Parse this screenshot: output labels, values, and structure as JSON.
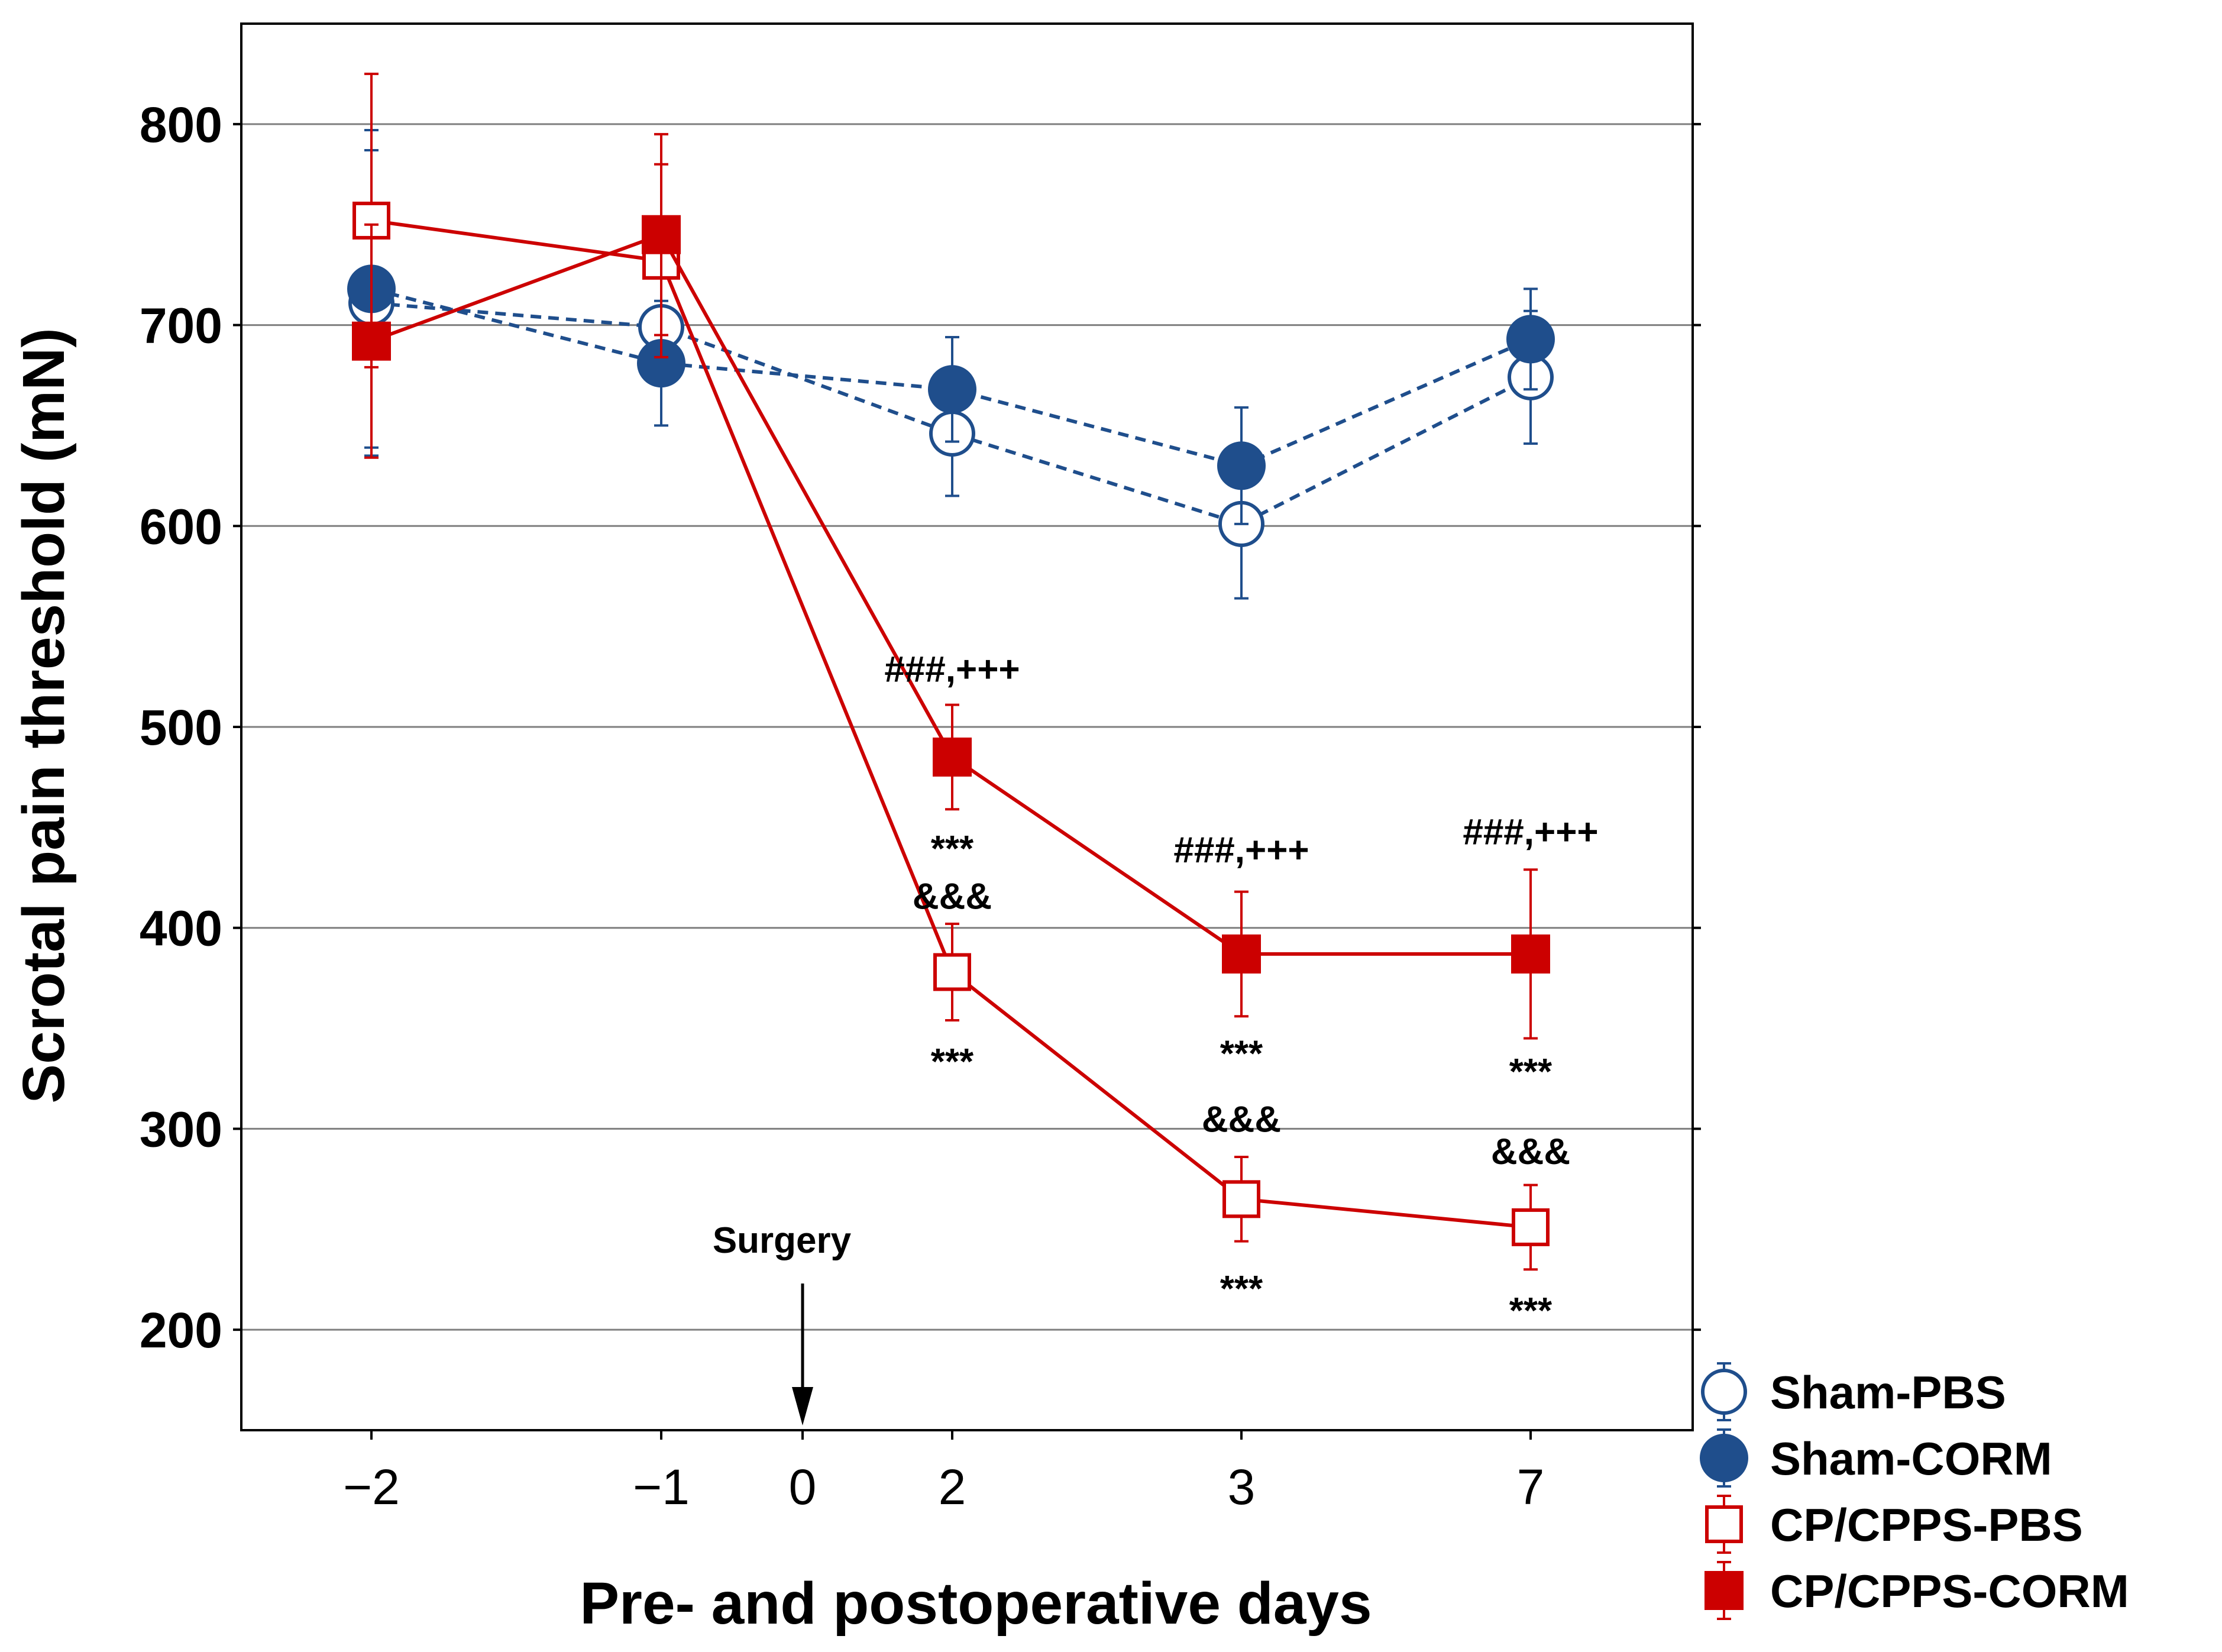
{
  "chart_data": {
    "type": "line",
    "xlabel": "Pre- and postoperative days",
    "ylabel": "Scrotal pain threshold (mN)",
    "x_categories": [
      "−2",
      "−1",
      "0",
      "2",
      "3",
      "7"
    ],
    "ylim": [
      150,
      850
    ],
    "yticks": [
      200,
      300,
      400,
      500,
      600,
      700,
      800
    ],
    "grid": "horizontal",
    "legend_position": "bottom-right",
    "colors": {
      "sham": "#1f4e8c",
      "cp": "#cc0000"
    },
    "series": [
      {
        "name": "Sham-PBS",
        "marker": "open-circle",
        "line": "dashed",
        "color": "#1f4e8c",
        "x_index": [
          0,
          1,
          3,
          4,
          5
        ],
        "values": [
          711,
          699,
          646,
          601,
          674
        ],
        "errors": [
          76,
          29,
          31,
          37,
          33
        ]
      },
      {
        "name": "Sham-CORM",
        "marker": "filled-circle",
        "line": "dashed",
        "color": "#1f4e8c",
        "x_index": [
          0,
          1,
          3,
          4,
          5
        ],
        "values": [
          718,
          681,
          668,
          630,
          693
        ],
        "errors": [
          79,
          31,
          26,
          29,
          25
        ]
      },
      {
        "name": "CP/CPPS-PBS",
        "marker": "open-square",
        "line": "solid",
        "color": "#cc0000",
        "x_index": [
          0,
          1,
          3,
          4,
          5
        ],
        "values": [
          752,
          732,
          378,
          265,
          251
        ],
        "errors": [
          73,
          48,
          24,
          21,
          21
        ]
      },
      {
        "name": "CP/CPPS-CORM",
        "marker": "filled-square",
        "line": "solid",
        "color": "#cc0000",
        "x_index": [
          0,
          1,
          3,
          4,
          5
        ],
        "values": [
          692,
          745,
          485,
          387,
          387
        ],
        "errors": [
          58,
          50,
          26,
          31,
          42
        ]
      }
    ],
    "annotations": [
      {
        "text": "###,+++",
        "x_index": 3,
        "y": 529
      },
      {
        "text": "***",
        "x_index": 3,
        "y": 445
      },
      {
        "text": "&&&",
        "x_index": 3,
        "y": 416
      },
      {
        "text": "***",
        "x_index": 3,
        "y": 339
      },
      {
        "text": "###,+++",
        "x_index": 4,
        "y": 439
      },
      {
        "text": "***",
        "x_index": 4,
        "y": 343
      },
      {
        "text": "&&&",
        "x_index": 4,
        "y": 305
      },
      {
        "text": "***",
        "x_index": 4,
        "y": 226
      },
      {
        "text": "###,+++",
        "x_index": 5,
        "y": 448
      },
      {
        "text": "***",
        "x_index": 5,
        "y": 334
      },
      {
        "text": "&&&",
        "x_index": 5,
        "y": 289
      },
      {
        "text": "***",
        "x_index": 5,
        "y": 215
      }
    ],
    "event_marker": {
      "label": "Surgery",
      "x_index": 2
    }
  }
}
